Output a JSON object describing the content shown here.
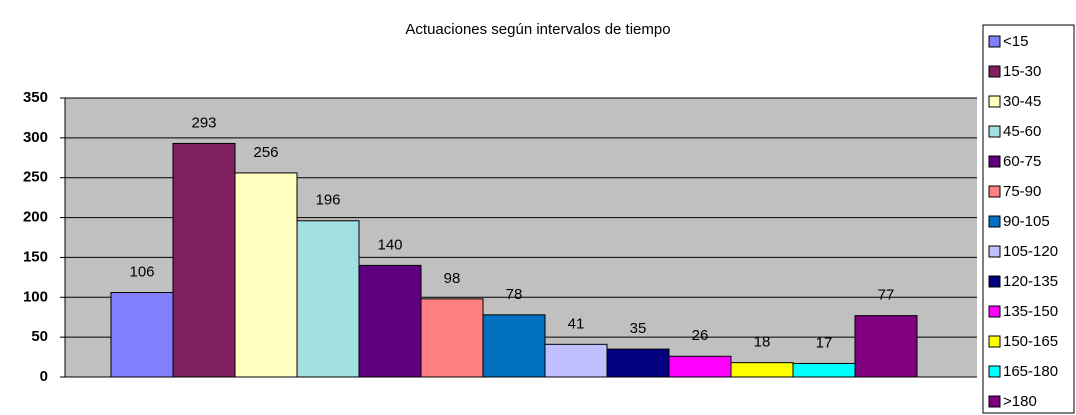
{
  "chart_data": {
    "type": "bar",
    "title": "Actuaciones según intervalos de tiempo",
    "series": [
      {
        "name": "<15",
        "color": "#8080ff",
        "values": [
          106
        ]
      },
      {
        "name": "15-30",
        "color": "#802060",
        "values": [
          293
        ]
      },
      {
        "name": "30-45",
        "color": "#ffffc0",
        "values": [
          256
        ]
      },
      {
        "name": "45-60",
        "color": "#a0e0e0",
        "values": [
          196
        ]
      },
      {
        "name": "60-75",
        "color": "#600080",
        "values": [
          140
        ]
      },
      {
        "name": "75-90",
        "color": "#ff8080",
        "values": [
          98
        ]
      },
      {
        "name": "90-105",
        "color": "#0070c0",
        "values": [
          78
        ]
      },
      {
        "name": "105-120",
        "color": "#c0c0ff",
        "values": [
          41
        ]
      },
      {
        "name": "120-135",
        "color": "#000080",
        "values": [
          35
        ]
      },
      {
        "name": "135-150",
        "color": "#ff00ff",
        "values": [
          26
        ]
      },
      {
        "name": "150-165",
        "color": "#ffff00",
        "values": [
          18
        ]
      },
      {
        "name": "165-180",
        "color": "#00ffff",
        "values": [
          17
        ]
      },
      {
        "name": ">180",
        "color": "#800080",
        "values": [
          77
        ]
      }
    ],
    "ylim": [
      0,
      350
    ],
    "yticks": [
      0,
      50,
      100,
      150,
      200,
      250,
      300,
      350
    ],
    "grid": true,
    "legend": "right"
  }
}
